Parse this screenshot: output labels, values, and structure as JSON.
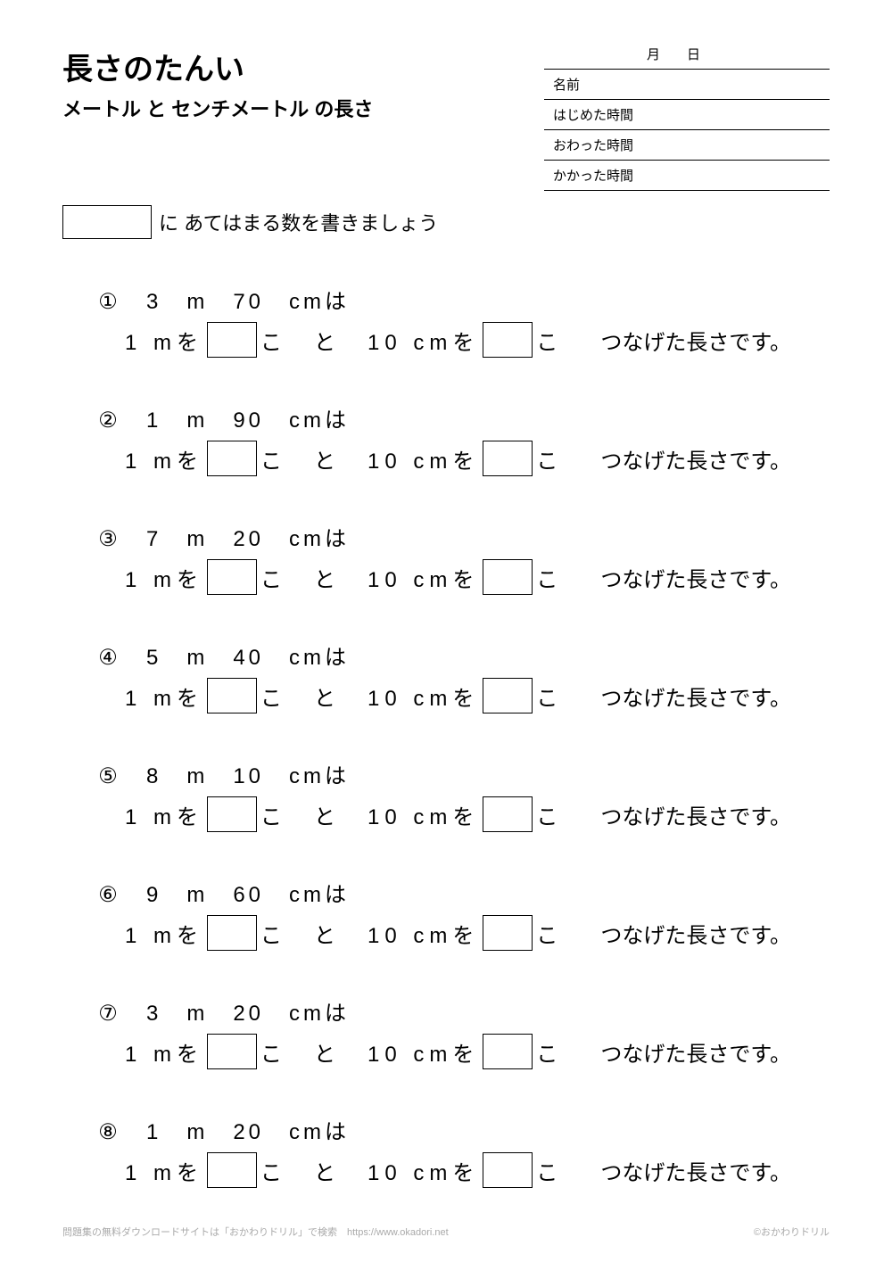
{
  "header": {
    "title": "長さのたんい",
    "subtitle": "メートル と センチメートル の長さ",
    "month_label": "月",
    "day_label": "日",
    "name_label": "名前",
    "start_label": "はじめた時間",
    "end_label": "おわった時間",
    "duration_label": "かかった時間"
  },
  "instruction": {
    "text": "に あてはまる数を書きましょう"
  },
  "problem_text": {
    "prefix_1m": "1 mを",
    "ko": "こ",
    "to": "と",
    "amount_10cm": "10 cmを",
    "suffix": "つなげた長さです。"
  },
  "problems": [
    {
      "num": "①",
      "measure": "3　m　70　cmは"
    },
    {
      "num": "②",
      "measure": "1　m　90　cmは"
    },
    {
      "num": "③",
      "measure": "7　m　20　cmは"
    },
    {
      "num": "④",
      "measure": "5　m　40　cmは"
    },
    {
      "num": "⑤",
      "measure": "8　m　10　cmは"
    },
    {
      "num": "⑥",
      "measure": "9　m　60　cmは"
    },
    {
      "num": "⑦",
      "measure": "3　m　20　cmは"
    },
    {
      "num": "⑧",
      "measure": "1　m　20　cmは"
    }
  ],
  "footer": {
    "left": "問題集の無料ダウンロードサイトは「おかわりドリル」で検索　https://www.okadori.net",
    "right": "©おかわりドリル"
  }
}
